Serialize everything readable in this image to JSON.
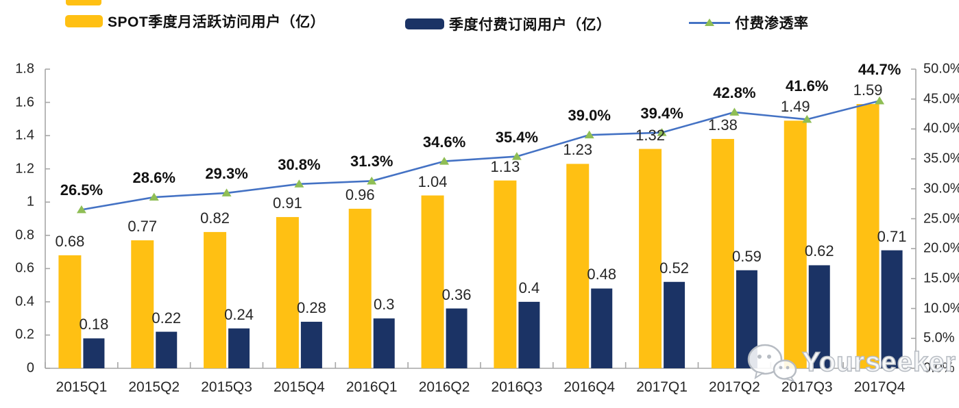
{
  "colors": {
    "mau_bar": "#FFC013",
    "sub_bar": "#1B3365",
    "line": "#4472C4",
    "marker": "#8FBE55",
    "axis": "#A6A6A6",
    "label_text": "#262626"
  },
  "legend": [
    {
      "label": "SPOT季度月活跃访问用户（亿）",
      "type": "bar",
      "color_key": "mau_bar"
    },
    {
      "label": "季度付费订阅用户（亿）",
      "type": "bar",
      "color_key": "sub_bar"
    },
    {
      "label": "付费渗透率",
      "type": "line",
      "color_key": "line"
    }
  ],
  "watermark": {
    "text": "Yourseeker",
    "icon": "wechat-icon"
  },
  "chart_data": {
    "type": "bar",
    "subtype": "combo-dual-axis",
    "categories": [
      "2015Q1",
      "2015Q2",
      "2015Q3",
      "2015Q4",
      "2016Q1",
      "2016Q2",
      "2016Q3",
      "2016Q4",
      "2017Q1",
      "2017Q2",
      "2017Q3",
      "2017Q4"
    ],
    "series": [
      {
        "name": "SPOT季度月活跃访问用户（亿）",
        "type": "bar",
        "axis": "left",
        "color_key": "mau_bar",
        "values": [
          0.68,
          0.77,
          0.82,
          0.91,
          0.96,
          1.04,
          1.13,
          1.23,
          1.32,
          1.38,
          1.49,
          1.59
        ],
        "labels": [
          "0.68",
          "0.77",
          "0.82",
          "0.91",
          "0.96",
          "1.04",
          "1.13",
          "1.23",
          "1.32",
          "1.38",
          "1.49",
          "1.59"
        ]
      },
      {
        "name": "季度付费订阅用户（亿）",
        "type": "bar",
        "axis": "left",
        "color_key": "sub_bar",
        "values": [
          0.18,
          0.22,
          0.24,
          0.28,
          0.3,
          0.36,
          0.4,
          0.48,
          0.52,
          0.59,
          0.62,
          0.71
        ],
        "labels": [
          "0.18",
          "0.22",
          "0.24",
          "0.28",
          "0.3",
          "0.36",
          "0.4",
          "0.48",
          "0.52",
          "0.59",
          "0.62",
          "0.71"
        ]
      },
      {
        "name": "付费渗透率",
        "type": "line",
        "axis": "right",
        "color_key": "line",
        "marker": "triangle",
        "values": [
          26.5,
          28.6,
          29.3,
          30.8,
          31.3,
          34.6,
          35.4,
          39.0,
          39.4,
          42.8,
          41.6,
          44.7
        ],
        "labels": [
          "26.5%",
          "28.6%",
          "29.3%",
          "30.8%",
          "31.3%",
          "34.6%",
          "35.4%",
          "39.0%",
          "39.4%",
          "42.8%",
          "41.6%",
          "44.7%"
        ]
      }
    ],
    "left_axis": {
      "min": 0,
      "max": 1.8,
      "step": 0.2,
      "ticks": [
        "0",
        "0.2",
        "0.4",
        "0.6",
        "0.8",
        "1",
        "1.2",
        "1.4",
        "1.6",
        "1.8"
      ]
    },
    "right_axis": {
      "min": 0,
      "max": 50,
      "step": 5,
      "suffix": "%",
      "ticks": [
        "0.0%",
        "5.0%",
        "10.0%",
        "15.0%",
        "20.0%",
        "25.0%",
        "30.0%",
        "35.0%",
        "40.0%",
        "45.0%",
        "50.0%"
      ]
    },
    "title": "",
    "xlabel": "",
    "ylabel": "",
    "grid": false,
    "legend_position": "top"
  }
}
